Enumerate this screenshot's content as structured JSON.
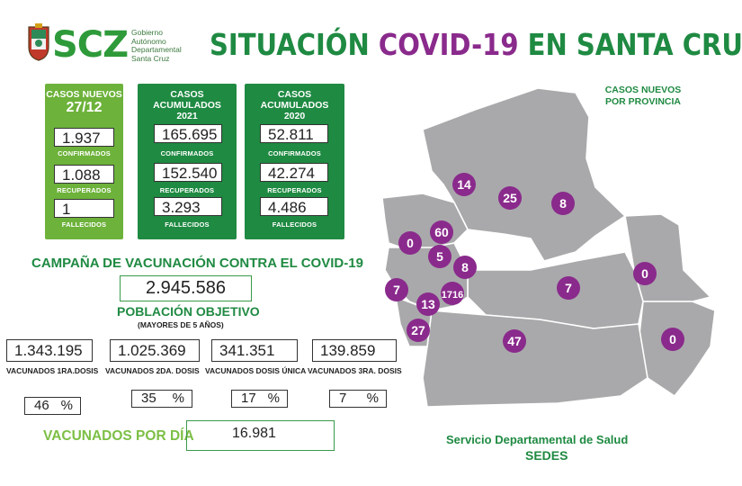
{
  "header": {
    "logo_text": "SCZ",
    "logo_sub": [
      "Gobierno",
      "Autónomo",
      "Departamental",
      "Santa Cruz"
    ],
    "title_part1": "SITUACIÓN ",
    "title_accent": "COVID-19",
    "title_part2": " EN SANTA CRUZ"
  },
  "daily": {
    "head1": "CASOS NUEVOS",
    "head2": "27/12",
    "confirmados": "1.937",
    "recuperados": "1.088",
    "fallecidos": "1"
  },
  "acum2021": {
    "head1": "CASOS ACUMULADOS",
    "head2": "2021",
    "confirmados": "165.695",
    "recuperados": "152.540",
    "fallecidos": "3.293"
  },
  "acum2020": {
    "head1": "CASOS ACUMULADOS",
    "head2": "2020",
    "confirmados": "52.811",
    "recuperados": "42.274",
    "fallecidos": "4.486"
  },
  "labels": {
    "confirmados": "CONFIRMADOS",
    "recuperados": "RECUPERADOS",
    "fallecidos": "FALLECIDOS"
  },
  "campaign": {
    "title": "CAMPAÑA DE VACUNACIÓN CONTRA EL COVID-19",
    "poblacion_value": "2.945.586",
    "poblacion_label": "POBLACIÓN OBJETIVO",
    "poblacion_sub": "(MAYORES DE 5 AÑOS)",
    "doses": [
      {
        "value": "1.343.195",
        "label": "VACUNADOS 1RA.DOSIS",
        "pct": "46"
      },
      {
        "value": "1.025.369",
        "label": "VACUNADOS 2DA. DOSIS",
        "pct": "35"
      },
      {
        "value": "341.351",
        "label": "VACUNADOS DOSIS ÚNICA",
        "pct": "17"
      },
      {
        "value": "139.859",
        "label": "VACUNADOS 3RA. DOSIS",
        "pct": "7"
      }
    ],
    "pct_symbol": "%",
    "per_day_label": "VACUNADOS POR DÍA",
    "per_day_value": "16.981"
  },
  "map": {
    "title": "CASOS NUEVOS POR PROVINCIA",
    "provinces": [
      "14",
      "25",
      "8",
      "60",
      "0",
      "5",
      "8",
      "7",
      "1716",
      "13",
      "7",
      "0",
      "27",
      "47",
      "0"
    ]
  },
  "footer": {
    "line1": "Servicio Departamental de Salud",
    "line2": "SEDES"
  },
  "colors": {
    "green_dark": "#1f8a42",
    "green_light": "#6db23b",
    "purple": "#8a2a8c",
    "map_gray": "#a9a9ab"
  }
}
